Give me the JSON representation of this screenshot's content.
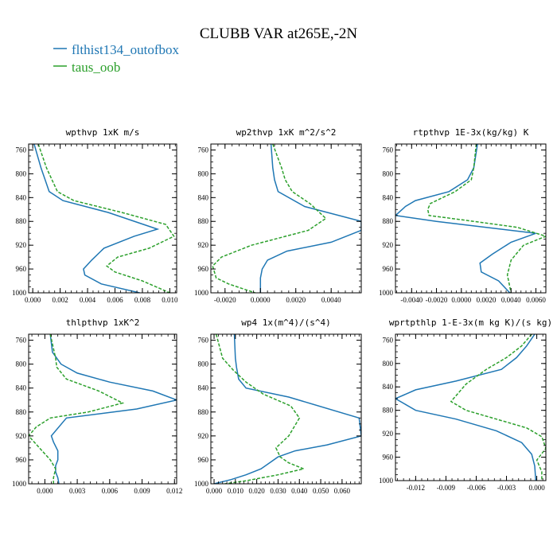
{
  "figure_title": "CLUBB VAR at265E,-2N",
  "legend": [
    {
      "label": "flthist134_outofbox",
      "color": "#1f77b4"
    },
    {
      "label": "taus_oob",
      "color": "#2ca02c"
    }
  ],
  "chart_data": [
    {
      "type": "line",
      "title": "wpthvp  1xK m/s",
      "xlim": [
        -0.0003,
        0.0105
      ],
      "ylim": [
        1000,
        750
      ],
      "x_ticks": [
        0.0,
        0.002,
        0.004,
        0.006,
        0.008,
        0.01
      ],
      "x_tick_labels": [
        "0.000",
        "0.002",
        "0.004",
        "0.006",
        "0.008",
        "0.010"
      ],
      "y_ticks": [
        760,
        800,
        840,
        880,
        920,
        960,
        1000
      ],
      "series": [
        {
          "name": "flthist134_outofbox",
          "color": "#1f77b4",
          "dash": "",
          "x": [
            0.0001,
            0.0006,
            0.0009,
            0.0012,
            0.0022,
            0.0055,
            0.0091,
            0.0074,
            0.0052,
            0.0043,
            0.0037,
            0.0038,
            0.005,
            0.0078
          ],
          "y": [
            750,
            790,
            810,
            830,
            845,
            865,
            893,
            905,
            925,
            945,
            960,
            970,
            985,
            1000
          ]
        },
        {
          "name": "taus_oob",
          "color": "#2ca02c",
          "dash": "4,2",
          "x": [
            0.0004,
            0.001,
            0.0014,
            0.0018,
            0.003,
            0.0065,
            0.0097,
            0.0103,
            0.0085,
            0.0062,
            0.0054,
            0.006,
            0.008,
            0.01
          ],
          "y": [
            750,
            790,
            810,
            830,
            845,
            865,
            885,
            905,
            925,
            940,
            955,
            965,
            980,
            1000
          ]
        }
      ]
    },
    {
      "type": "line",
      "title": "wp2thvp  1xK m^2/s^2",
      "xlim": [
        -0.0028,
        0.0057
      ],
      "ylim": [
        1000,
        750
      ],
      "x_ticks": [
        -0.002,
        0.0,
        0.002,
        0.004
      ],
      "x_tick_labels": [
        "-0.0020",
        "0.0000",
        "0.0020",
        "0.0040"
      ],
      "y_ticks": [
        760,
        800,
        840,
        880,
        920,
        960,
        1000
      ],
      "series": [
        {
          "name": "flthist134_outofbox",
          "color": "#1f77b4",
          "dash": "",
          "x": [
            0.0006,
            0.0007,
            0.0008,
            0.001,
            0.0025,
            0.0057,
            0.0057,
            0.004,
            0.0015,
            0.0004,
            0.0001,
            0.0,
            0.0,
            0.0
          ],
          "y": [
            750,
            790,
            810,
            830,
            855,
            880,
            895,
            915,
            930,
            945,
            960,
            975,
            990,
            1000
          ]
        },
        {
          "name": "taus_oob",
          "color": "#2ca02c",
          "dash": "4,2",
          "x": [
            0.0007,
            0.0012,
            0.0014,
            0.0018,
            0.0028,
            0.0037,
            0.0027,
            -0.0005,
            -0.0022,
            -0.0027,
            -0.0025,
            -0.0018,
            -0.0008,
            -0.0003
          ],
          "y": [
            750,
            790,
            810,
            830,
            850,
            875,
            895,
            920,
            940,
            955,
            975,
            985,
            995,
            1000
          ]
        }
      ]
    },
    {
      "type": "line",
      "title": "rtpthvp  1E-3x(kg/kg) K",
      "xlim": [
        -0.0053,
        0.0068
      ],
      "ylim": [
        1000,
        750
      ],
      "x_ticks": [
        -0.004,
        -0.002,
        0.0,
        0.002,
        0.004,
        0.006
      ],
      "x_tick_labels": [
        "-0.0040",
        "-0.0020",
        "0.0000",
        "0.0020",
        "0.0040",
        "0.0060"
      ],
      "y_ticks": [
        760,
        800,
        840,
        880,
        920,
        960,
        1000
      ],
      "series": [
        {
          "name": "flthist134_outofbox",
          "color": "#1f77b4",
          "dash": "",
          "x": [
            0.0013,
            0.001,
            0.0005,
            -0.001,
            -0.0037,
            -0.0045,
            -0.0053,
            -0.002,
            0.002,
            0.006,
            0.004,
            0.0025,
            0.0015,
            0.0016,
            0.003,
            0.0039
          ],
          "y": [
            750,
            790,
            810,
            830,
            845,
            855,
            870,
            880,
            890,
            900,
            915,
            935,
            950,
            965,
            980,
            1000
          ]
        },
        {
          "name": "taus_oob",
          "color": "#2ca02c",
          "dash": "4,2",
          "x": [
            0.0012,
            0.001,
            0.0008,
            -0.0005,
            -0.0025,
            -0.0027,
            -0.0026,
            0.001,
            0.0045,
            0.0068,
            0.005,
            0.004,
            0.0037,
            0.004
          ],
          "y": [
            750,
            790,
            810,
            830,
            850,
            860,
            870,
            880,
            890,
            905,
            920,
            945,
            970,
            1000
          ]
        }
      ]
    },
    {
      "type": "line",
      "title": "thlpthvp  1xK^2",
      "xlim": [
        -0.0015,
        0.0122
      ],
      "ylim": [
        1000,
        750
      ],
      "x_ticks": [
        0.0,
        0.003,
        0.006,
        0.009,
        0.012
      ],
      "x_tick_labels": [
        "0.000",
        "0.003",
        "0.006",
        "0.009",
        "0.012"
      ],
      "y_ticks": [
        760,
        800,
        840,
        880,
        920,
        960,
        1000
      ],
      "series": [
        {
          "name": "flthist134_outofbox",
          "color": "#1f77b4",
          "dash": "",
          "x": [
            0.0005,
            0.0007,
            0.0015,
            0.003,
            0.006,
            0.01,
            0.0122,
            0.0085,
            0.002,
            0.0006,
            0.0008,
            0.0012,
            0.0012,
            0.001,
            0.001,
            0.0012,
            0.0013
          ],
          "y": [
            750,
            780,
            800,
            815,
            830,
            845,
            860,
            875,
            890,
            920,
            930,
            945,
            960,
            970,
            980,
            990,
            1000
          ]
        },
        {
          "name": "taus_oob",
          "color": "#2ca02c",
          "dash": "4,2",
          "x": [
            0.0005,
            0.001,
            0.0011,
            0.002,
            0.005,
            0.0072,
            0.004,
            0.0005,
            -0.0008,
            -0.0015,
            -0.0005,
            0.0005,
            0.001,
            0.0008,
            0.0008
          ],
          "y": [
            750,
            790,
            805,
            825,
            845,
            865,
            880,
            890,
            905,
            920,
            940,
            960,
            975,
            990,
            1000
          ]
        }
      ]
    },
    {
      "type": "line",
      "title": "wp4  1x(m^4)/(s^4)",
      "xlim": [
        -0.0015,
        0.069
      ],
      "ylim": [
        1000,
        750
      ],
      "x_ticks": [
        0.0,
        0.01,
        0.02,
        0.03,
        0.04,
        0.05,
        0.06
      ],
      "x_tick_labels": [
        "0.000",
        "0.010",
        "0.020",
        "0.030",
        "0.040",
        "0.050",
        "0.060"
      ],
      "y_ticks": [
        760,
        800,
        840,
        880,
        920,
        960,
        1000
      ],
      "series": [
        {
          "name": "flthist134_outofbox",
          "color": "#1f77b4",
          "dash": "",
          "x": [
            0.0095,
            0.01,
            0.0105,
            0.0115,
            0.015,
            0.035,
            0.068,
            0.069,
            0.053,
            0.038,
            0.03,
            0.026,
            0.022,
            0.015,
            0.008,
            0.0
          ],
          "y": [
            750,
            790,
            805,
            825,
            840,
            855,
            890,
            920,
            935,
            945,
            955,
            965,
            975,
            985,
            993,
            1000
          ]
        },
        {
          "name": "taus_oob",
          "color": "#2ca02c",
          "dash": "4,2",
          "x": [
            0.001,
            0.004,
            0.009,
            0.015,
            0.023,
            0.036,
            0.04,
            0.035,
            0.029,
            0.031,
            0.035,
            0.042,
            0.03,
            0.015,
            0.005
          ],
          "y": [
            750,
            790,
            810,
            830,
            850,
            870,
            890,
            920,
            940,
            955,
            965,
            975,
            985,
            995,
            1000
          ]
        }
      ]
    },
    {
      "type": "line",
      "title": "wprtpthlp  1-E-3x(m kg K)/(s kg)",
      "xlim": [
        -0.014,
        0.0009
      ],
      "ylim": [
        1000,
        750
      ],
      "x_ticks": [
        -0.012,
        -0.009,
        -0.006,
        -0.003,
        0.0
      ],
      "x_tick_labels": [
        "-0.012",
        "-0.009",
        "-0.006",
        "-0.003",
        "0.000"
      ],
      "y_ticks": [
        760,
        800,
        840,
        880,
        920,
        960,
        1000
      ],
      "series": [
        {
          "name": "flthist134_outofbox",
          "color": "#1f77b4",
          "dash": "",
          "x": [
            -0.0002,
            -0.001,
            -0.002,
            -0.0035,
            -0.008,
            -0.012,
            -0.014,
            -0.013,
            -0.012,
            -0.008,
            -0.004,
            -0.0015,
            -0.0005,
            -0.0002,
            -0.0001
          ],
          "y": [
            750,
            770,
            790,
            810,
            830,
            845,
            860,
            870,
            880,
            895,
            915,
            935,
            955,
            975,
            1000
          ]
        },
        {
          "name": "taus_oob",
          "color": "#2ca02c",
          "dash": "4,2",
          "x": [
            -0.0005,
            -0.0015,
            -0.003,
            -0.005,
            -0.007,
            -0.0085,
            -0.007,
            -0.004,
            -0.001,
            0.0005,
            0.0009,
            0.0,
            0.0005,
            0.0005
          ],
          "y": [
            750,
            770,
            790,
            810,
            835,
            865,
            880,
            895,
            910,
            925,
            945,
            965,
            985,
            1000
          ]
        }
      ]
    }
  ]
}
